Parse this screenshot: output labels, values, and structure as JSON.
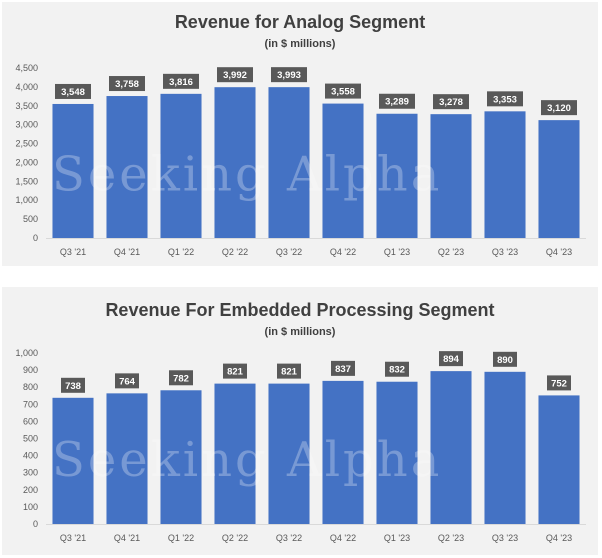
{
  "charts": {
    "analog": {
      "title": "Revenue for Analog Segment",
      "subtitle": "(in $ millions)",
      "watermark": "Seeking Alpha"
    },
    "embedded": {
      "title": "Revenue For Embedded Processing Segment",
      "subtitle": "(in $ millions)",
      "watermark": "Seeking Alpha"
    }
  },
  "colors": {
    "bar": "#4472c4",
    "label_box": "#595959",
    "panel_bg": "#f2f2f2",
    "axis": "#d9d9d9"
  },
  "chart_data": [
    {
      "type": "bar",
      "title": "Revenue for Analog Segment",
      "subtitle": "(in $ millions)",
      "categories": [
        "Q3 '21",
        "Q4 '21",
        "Q1 '22",
        "Q2 '22",
        "Q3 '22",
        "Q4 '22",
        "Q1 '23",
        "Q2 '23",
        "Q3 '23",
        "Q4 '23"
      ],
      "values": [
        3548,
        3758,
        3816,
        3992,
        3993,
        3558,
        3289,
        3278,
        3353,
        3120
      ],
      "data_labels": [
        "3,548",
        "3,758",
        "3,816",
        "3,992",
        "3,993",
        "3,558",
        "3,289",
        "3,278",
        "3,353",
        "3,120"
      ],
      "yticks": [
        "0",
        "500",
        "1,000",
        "1,500",
        "2,000",
        "2,500",
        "3,000",
        "3,500",
        "4,000",
        "4,500"
      ],
      "ylim": [
        0,
        4500
      ],
      "grid": false,
      "legend": "none"
    },
    {
      "type": "bar",
      "title": "Revenue For Embedded Processing Segment",
      "subtitle": "(in $ millions)",
      "categories": [
        "Q3 '21",
        "Q4 '21",
        "Q1 '22",
        "Q2 '22",
        "Q3 '22",
        "Q4 '22",
        "Q1 '23",
        "Q2 '23",
        "Q3 '23",
        "Q4 '23"
      ],
      "values": [
        738,
        764,
        782,
        821,
        821,
        837,
        832,
        894,
        890,
        752
      ],
      "data_labels": [
        "738",
        "764",
        "782",
        "821",
        "821",
        "837",
        "832",
        "894",
        "890",
        "752"
      ],
      "yticks": [
        "0",
        "100",
        "200",
        "300",
        "400",
        "500",
        "600",
        "700",
        "800",
        "900",
        "1,000"
      ],
      "ylim": [
        0,
        1000
      ],
      "grid": false,
      "legend": "none"
    }
  ]
}
